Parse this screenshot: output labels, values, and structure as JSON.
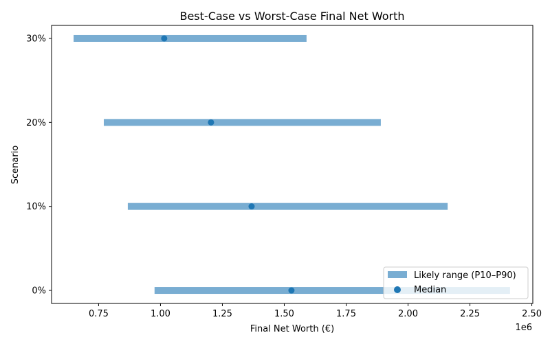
{
  "chart_data": {
    "type": "range-bar",
    "title": "Best-Case vs Worst-Case Final Net Worth",
    "xlabel": "Final Net Worth (€)",
    "ylabel": "Scenario",
    "x_offset_label": "1e6",
    "xlim": [
      0.56,
      2.504
    ],
    "xticks": [
      0.75,
      1.0,
      1.25,
      1.5,
      1.75,
      2.0,
      2.25,
      2.5
    ],
    "xtick_labels": [
      "0.75",
      "1.00",
      "1.25",
      "1.50",
      "1.75",
      "2.00",
      "2.25",
      "2.50"
    ],
    "categories": [
      "0%",
      "10%",
      "20%",
      "30%"
    ],
    "series": [
      {
        "name": "Likely range (P10–P90)",
        "kind": "range",
        "color": "#1f77b4",
        "alpha": 0.6,
        "low": [
          0.976,
          0.868,
          0.771,
          0.649
        ],
        "high": [
          2.412,
          2.16,
          1.89,
          1.59
        ]
      },
      {
        "name": "Median",
        "kind": "point",
        "color": "#1f77b4",
        "values": [
          1.529,
          1.368,
          1.204,
          1.015
        ]
      }
    ],
    "grid": false,
    "legend_position": "lower-right"
  }
}
